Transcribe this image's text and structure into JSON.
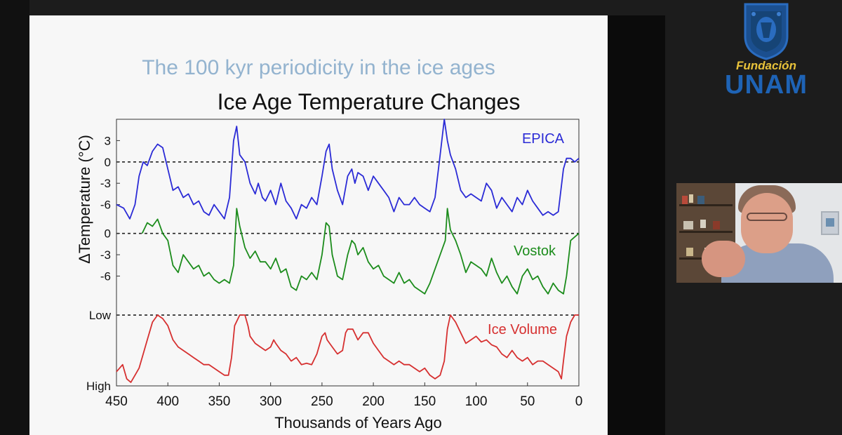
{
  "slide": {
    "title": "The 100 kyr periodicity in the ice ages"
  },
  "chart_data": {
    "type": "line",
    "title": "Ice Age Temperature Changes",
    "xlabel": "Thousands of Years Ago",
    "ylabel": "ΔTemperature (°C)",
    "xlim": [
      450,
      0
    ],
    "x_ticks": [
      "450",
      "400",
      "350",
      "300",
      "250",
      "200",
      "150",
      "100",
      "50",
      "0"
    ],
    "grid": false,
    "series": [
      {
        "name": "EPICA",
        "color": "#2b2bd6",
        "y_ticks": [
          "3",
          "0",
          "-3",
          "-6"
        ],
        "ylim": [
          -9,
          6
        ],
        "baseline": 0,
        "x": [
          450,
          443,
          437,
          432,
          428,
          424,
          420,
          415,
          410,
          405,
          400,
          395,
          390,
          385,
          380,
          375,
          370,
          365,
          360,
          355,
          350,
          345,
          340,
          336,
          333,
          330,
          325,
          320,
          315,
          312,
          308,
          305,
          300,
          295,
          290,
          285,
          280,
          275,
          270,
          265,
          260,
          255,
          250,
          246,
          243,
          240,
          235,
          230,
          225,
          221,
          218,
          215,
          210,
          205,
          200,
          195,
          190,
          185,
          180,
          175,
          170,
          165,
          160,
          155,
          150,
          145,
          140,
          135,
          131,
          128,
          125,
          120,
          115,
          110,
          105,
          100,
          95,
          90,
          85,
          80,
          75,
          70,
          65,
          60,
          55,
          50,
          45,
          40,
          35,
          30,
          25,
          20,
          15,
          12,
          8,
          4,
          0
        ],
        "values": [
          -6,
          -6.5,
          -8,
          -6,
          -2,
          0,
          -0.5,
          1.5,
          2.5,
          2,
          -1,
          -4,
          -3.5,
          -5,
          -4.5,
          -6,
          -5.5,
          -7,
          -7.5,
          -6,
          -7,
          -8,
          -5,
          3,
          5,
          1,
          0,
          -3,
          -4.5,
          -3,
          -5,
          -5.5,
          -4,
          -6,
          -3,
          -5.5,
          -6.5,
          -8,
          -6,
          -6.5,
          -5,
          -6,
          -2,
          1.5,
          2.5,
          -1,
          -4,
          -6,
          -2,
          -1,
          -3,
          -1.5,
          -2,
          -4,
          -2,
          -3,
          -4,
          -5,
          -7,
          -5,
          -6,
          -6,
          -5,
          -6,
          -6.5,
          -7,
          -5,
          1,
          6,
          3,
          1,
          -1,
          -4,
          -5,
          -4.5,
          -5,
          -5.5,
          -3,
          -4,
          -6.5,
          -5,
          -6,
          -7,
          -5,
          -6,
          -4,
          -5.5,
          -6.5,
          -7.5,
          -7,
          -7.5,
          -7,
          -1,
          0.5,
          0.5,
          0,
          0.5
        ]
      },
      {
        "name": "Vostok",
        "color": "#1c8c1c",
        "y_ticks": [
          "0",
          "-3",
          "-6"
        ],
        "ylim": [
          -10,
          5
        ],
        "baseline": 0,
        "x": [
          425,
          420,
          415,
          410,
          405,
          400,
          395,
          390,
          385,
          380,
          375,
          370,
          365,
          360,
          355,
          350,
          345,
          340,
          336,
          333,
          330,
          325,
          320,
          315,
          310,
          305,
          300,
          295,
          290,
          285,
          280,
          275,
          270,
          265,
          260,
          255,
          250,
          246,
          243,
          240,
          235,
          230,
          225,
          221,
          218,
          215,
          210,
          205,
          200,
          195,
          190,
          185,
          180,
          175,
          170,
          165,
          160,
          155,
          150,
          145,
          140,
          135,
          130,
          128,
          125,
          120,
          115,
          110,
          105,
          100,
          95,
          90,
          85,
          80,
          75,
          70,
          65,
          60,
          55,
          50,
          45,
          40,
          35,
          30,
          25,
          20,
          15,
          12,
          8,
          4,
          0
        ],
        "values": [
          0,
          1.5,
          1,
          2,
          0,
          -1,
          -4.5,
          -5.5,
          -3,
          -4,
          -5,
          -4.5,
          -6,
          -5.5,
          -6.5,
          -7,
          -6.5,
          -7,
          -4.5,
          3.5,
          1,
          -2,
          -3.5,
          -2.5,
          -4,
          -4,
          -5,
          -3.5,
          -5.5,
          -5,
          -7.5,
          -8,
          -6,
          -6.5,
          -5.5,
          -6.5,
          -3,
          1.5,
          1,
          -3,
          -6,
          -6.5,
          -3,
          -1,
          -1.5,
          -3,
          -2,
          -4,
          -5,
          -4.5,
          -6,
          -6.5,
          -7,
          -5.5,
          -7,
          -6.5,
          -7.5,
          -8,
          -8.5,
          -7,
          -5,
          -3,
          -1,
          3.5,
          0.5,
          -1,
          -3,
          -5.5,
          -4,
          -4.5,
          -5,
          -6,
          -3.5,
          -5.5,
          -7,
          -6,
          -7.5,
          -8.5,
          -6,
          -5,
          -6.5,
          -6,
          -7.5,
          -8.5,
          -7,
          -8,
          -8.5,
          -6,
          -1,
          -0.5,
          0
        ]
      },
      {
        "name": "Ice Volume",
        "color": "#d63030",
        "y_ticks": [
          "Low",
          "High"
        ],
        "ylim": [
          -0.05,
          1.05
        ],
        "baseline": 1,
        "x": [
          450,
          444,
          440,
          436,
          432,
          428,
          424,
          420,
          415,
          410,
          405,
          400,
          395,
          390,
          385,
          380,
          375,
          370,
          365,
          360,
          355,
          350,
          345,
          341,
          338,
          335,
          330,
          325,
          322,
          320,
          315,
          310,
          305,
          300,
          297,
          295,
          290,
          285,
          280,
          275,
          270,
          265,
          260,
          255,
          250,
          247,
          245,
          240,
          235,
          230,
          227,
          225,
          220,
          215,
          210,
          205,
          200,
          195,
          190,
          185,
          180,
          175,
          170,
          165,
          160,
          155,
          150,
          145,
          140,
          135,
          131,
          128,
          125,
          120,
          115,
          110,
          105,
          100,
          95,
          90,
          85,
          80,
          75,
          70,
          65,
          60,
          55,
          50,
          45,
          40,
          35,
          30,
          25,
          20,
          17,
          15,
          12,
          8,
          4,
          0
        ],
        "values": [
          0.2,
          0.3,
          0.1,
          0.05,
          0.15,
          0.25,
          0.45,
          0.65,
          0.9,
          1,
          0.95,
          0.85,
          0.65,
          0.55,
          0.5,
          0.45,
          0.4,
          0.35,
          0.3,
          0.3,
          0.25,
          0.2,
          0.15,
          0.15,
          0.4,
          0.85,
          1,
          1,
          0.85,
          0.7,
          0.6,
          0.55,
          0.5,
          0.55,
          0.65,
          0.6,
          0.5,
          0.45,
          0.35,
          0.4,
          0.3,
          0.32,
          0.3,
          0.45,
          0.7,
          0.75,
          0.65,
          0.55,
          0.45,
          0.5,
          0.75,
          0.8,
          0.8,
          0.65,
          0.75,
          0.75,
          0.6,
          0.5,
          0.4,
          0.35,
          0.3,
          0.35,
          0.3,
          0.3,
          0.25,
          0.2,
          0.25,
          0.15,
          0.1,
          0.15,
          0.35,
          0.8,
          1,
          0.9,
          0.75,
          0.6,
          0.65,
          0.7,
          0.62,
          0.65,
          0.58,
          0.55,
          0.45,
          0.4,
          0.5,
          0.4,
          0.35,
          0.4,
          0.3,
          0.35,
          0.35,
          0.3,
          0.25,
          0.2,
          0.1,
          0.35,
          0.7,
          0.9,
          1,
          1
        ]
      }
    ]
  },
  "branding": {
    "line1": "Fundación",
    "line2": "UNAM"
  },
  "video": {
    "participant": "Speaker video"
  }
}
